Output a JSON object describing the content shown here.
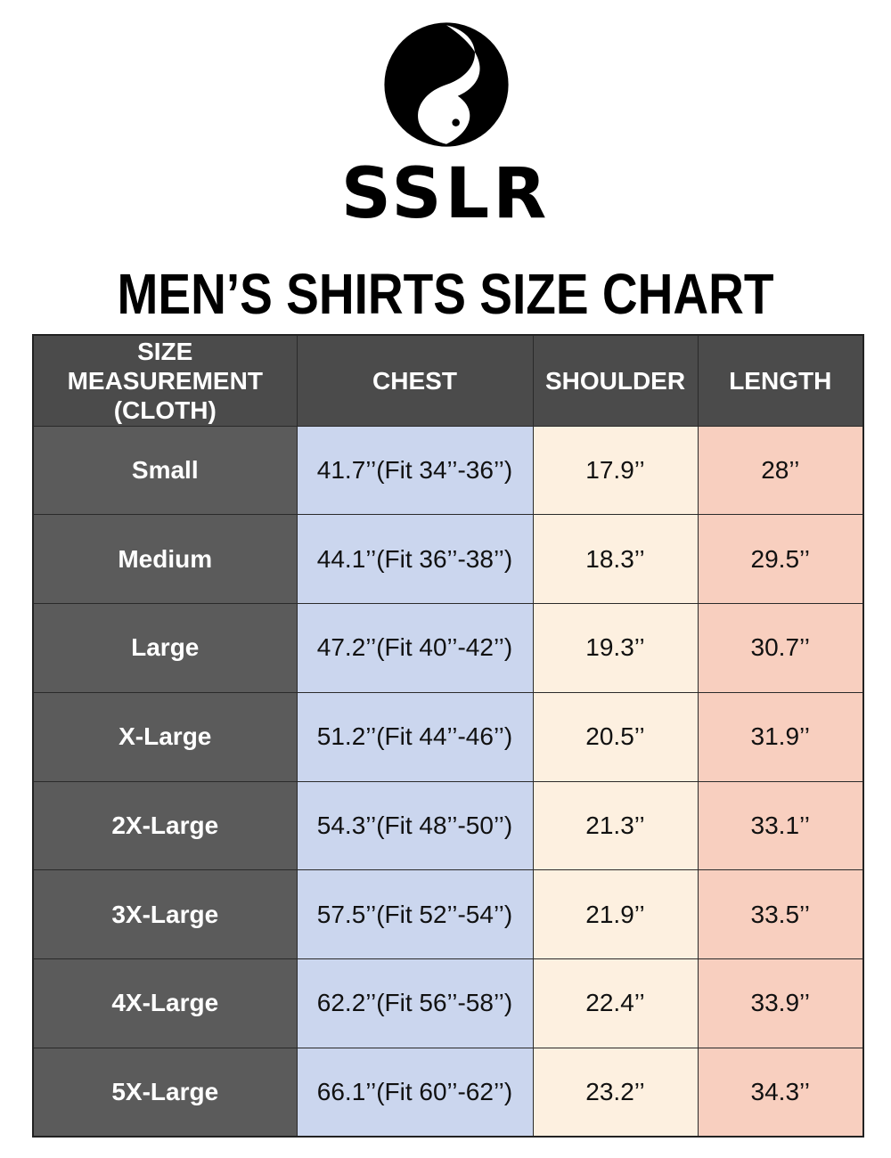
{
  "brand": {
    "name": "SSLR",
    "logo_icon": "yin-yang-icon"
  },
  "title": "MEN’S SHIRTS SIZE CHART",
  "colors": {
    "header_bg": "#4b4b4b",
    "size_col_bg": "#5b5b5b",
    "chest_col_bg": "#cbd6ee",
    "shoulder_col_bg": "#fdf0e0",
    "length_col_bg": "#f8cfbf"
  },
  "table": {
    "headers": [
      "SIZE MEASUREMENT (CLOTH)",
      "CHEST",
      "SHOULDER",
      "LENGTH"
    ],
    "rows": [
      {
        "size": "Small",
        "chest": "41.7’’(Fit 34’’-36’’)",
        "shoulder": "17.9’’",
        "length": "28’’"
      },
      {
        "size": "Medium",
        "chest": "44.1’’(Fit 36’’-38’’)",
        "shoulder": "18.3’’",
        "length": "29.5’’"
      },
      {
        "size": "Large",
        "chest": "47.2’’(Fit 40’’-42’’)",
        "shoulder": "19.3’’",
        "length": "30.7’’"
      },
      {
        "size": "X-Large",
        "chest": "51.2’’(Fit 44’’-46’’)",
        "shoulder": "20.5’’",
        "length": "31.9’’"
      },
      {
        "size": "2X-Large",
        "chest": "54.3’’(Fit 48’’-50’’)",
        "shoulder": "21.3’’",
        "length": "33.1’’"
      },
      {
        "size": "3X-Large",
        "chest": "57.5’’(Fit 52’’-54’’)",
        "shoulder": "21.9’’",
        "length": "33.5’’"
      },
      {
        "size": "4X-Large",
        "chest": "62.2’’(Fit 56’’-58’’)",
        "shoulder": "22.4’’",
        "length": "33.9’’"
      },
      {
        "size": "5X-Large",
        "chest": "66.1’’(Fit 60’’-62’’)",
        "shoulder": "23.2’’",
        "length": "34.3’’"
      }
    ]
  }
}
